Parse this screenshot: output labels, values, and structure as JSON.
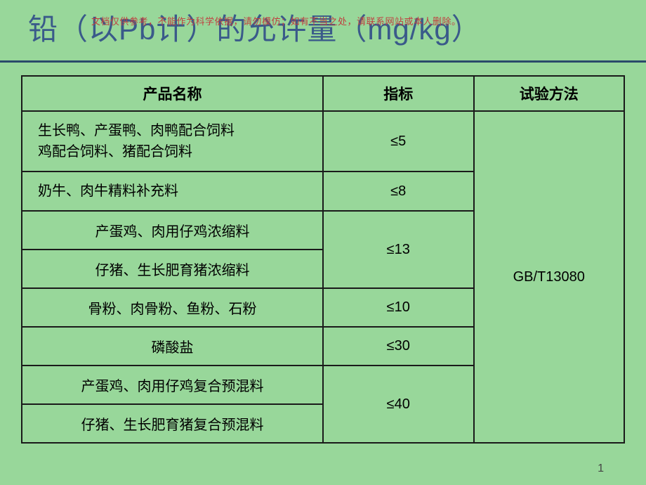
{
  "slide": {
    "background_color": "#98d79a",
    "title": "铅（以Pb计）的允许量（mg/kg）",
    "title_color": "#3a5a8a",
    "watermark": "文档仅供参考，不能作为科学依据，请勿模仿；如有不当之处，请联系网站或本人删除。",
    "divider_color": "#2a4a6a",
    "page_number": "1"
  },
  "table": {
    "border_color": "#1a1a1a",
    "headers": {
      "product": "产品名称",
      "index": "指标",
      "method": "试验方法"
    },
    "method_value": "GB/T13080",
    "rows": {
      "r1_product": "生长鸭、产蛋鸭、肉鸭配合饲料\n鸡配合饲料、猪配合饲料",
      "r1_index": "≤5",
      "r2_product": "奶牛、肉牛精料补充料",
      "r2_index": "≤8",
      "r3_product": "产蛋鸡、肉用仔鸡浓缩料",
      "r34_index": "≤13",
      "r4_product": "仔猪、生长肥育猪浓缩料",
      "r5_product": "骨粉、肉骨粉、鱼粉、石粉",
      "r5_index": "≤10",
      "r6_product": "磷酸盐",
      "r6_index": "≤30",
      "r7_product": "产蛋鸡、肉用仔鸡复合预混料",
      "r78_index": "≤40",
      "r8_product": "仔猪、生长肥育猪复合预混料"
    }
  }
}
